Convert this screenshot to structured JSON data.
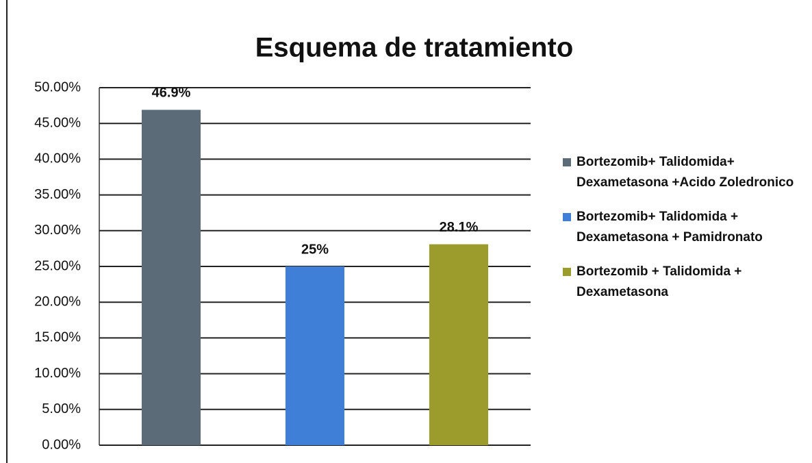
{
  "chart_data": {
    "type": "bar",
    "title": "Esquema de tratamiento",
    "categories": [
      null
    ],
    "series": [
      {
        "name": "Bortezomib+ Talidomida+ Dexametasona +Acido Zoledronico",
        "color": "#5b6b78",
        "values": [
          46.9
        ],
        "value_labels": [
          "46.9%"
        ]
      },
      {
        "name": "Bortezomib+ Talidomida + Dexametasona + Pamidronato",
        "color": "#3f7fd8",
        "values": [
          25
        ],
        "value_labels": [
          "25%"
        ]
      },
      {
        "name": "Bortezomib + Talidomida + Dexametasona",
        "color": "#9c9c2c",
        "values": [
          28.1
        ],
        "value_labels": [
          "28.1%"
        ]
      }
    ],
    "ylim": [
      0,
      50
    ],
    "yticks": [
      {
        "value": 0,
        "label": "0.00%"
      },
      {
        "value": 5,
        "label": "5.00%"
      },
      {
        "value": 10,
        "label": "10.00%"
      },
      {
        "value": 15,
        "label": "15.00%"
      },
      {
        "value": 20,
        "label": "20.00%"
      },
      {
        "value": 25,
        "label": "25.00%"
      },
      {
        "value": 30,
        "label": "30.00%"
      },
      {
        "value": 35,
        "label": "35.00%"
      },
      {
        "value": 40,
        "label": "40.00%"
      },
      {
        "value": 45,
        "label": "45.00%"
      },
      {
        "value": 50,
        "label": "50.00%"
      }
    ],
    "grid": true,
    "legend": "right"
  }
}
